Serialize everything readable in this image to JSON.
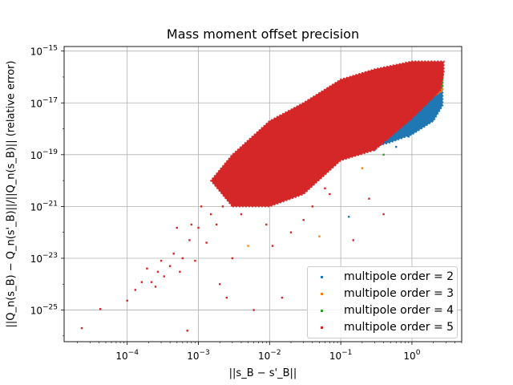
{
  "chart_data": {
    "type": "scatter",
    "title": "Mass moment offset precision",
    "xlabel": "||s_B − s'_B||",
    "ylabel": "||Q_n(s_B) − Q_n(s'_B)||/||Q_n(s_B)|| (relative error)",
    "xscale": "log",
    "yscale": "log",
    "xlim": [
      1.3e-05,
      5
    ],
    "ylim": [
      6e-27,
      1.5e-15
    ],
    "x_ticks": [
      {
        "value": 0.0001,
        "label": "10^-4"
      },
      {
        "value": 0.001,
        "label": "10^-3"
      },
      {
        "value": 0.01,
        "label": "10^-2"
      },
      {
        "value": 0.1,
        "label": "10^-1"
      },
      {
        "value": 1,
        "label": "10^0"
      }
    ],
    "y_ticks": [
      {
        "value": 1e-15,
        "label": "10^-15"
      },
      {
        "value": 1e-17,
        "label": "10^-17"
      },
      {
        "value": 1e-19,
        "label": "10^-19"
      },
      {
        "value": 1e-21,
        "label": "10^-21"
      },
      {
        "value": 1e-23,
        "label": "10^-23"
      },
      {
        "value": 1e-25,
        "label": "10^-25"
      }
    ],
    "grid": true,
    "legend_position": "bottom-right",
    "series": [
      {
        "name": "multipole order = 2",
        "color": "#1f77b4",
        "dense_region": [
          [
            0.05,
            1e-19
          ],
          [
            0.2,
            1.5e-19
          ],
          [
            0.5,
            3e-19
          ],
          [
            1,
            6e-19
          ],
          [
            2,
            2e-18
          ],
          [
            2.7,
            8e-18
          ],
          [
            2.7,
            1e-16
          ],
          [
            1.5,
            5e-17
          ],
          [
            0.6,
            1e-17
          ],
          [
            0.2,
            3e-18
          ],
          [
            0.08,
            8e-19
          ]
        ],
        "points": [
          [
            0.13,
            4e-22
          ],
          [
            0.3,
            1.5e-19
          ],
          [
            0.6,
            2e-19
          ],
          [
            1.2,
            1e-18
          ],
          [
            2.2,
            4e-18
          ],
          [
            0.9,
            5e-19
          ]
        ]
      },
      {
        "name": "multipole order = 3",
        "color": "#ff7f0e",
        "dense_region": [
          [
            1.5,
            1e-17
          ],
          [
            2.7,
            3e-17
          ],
          [
            2.7,
            2e-16
          ],
          [
            1.5,
            1e-16
          ]
        ],
        "points": [
          [
            0.05,
            7e-23
          ],
          [
            0.005,
            3e-23
          ],
          [
            0.2,
            3e-20
          ],
          [
            1.5,
            1e-17
          ],
          [
            2.5,
            5e-17
          ]
        ]
      },
      {
        "name": "multipole order = 4",
        "color": "#2ca02c",
        "dense_region": [
          [
            2,
            2e-17
          ],
          [
            2.7,
            4e-17
          ],
          [
            2.7,
            2e-16
          ],
          [
            2,
            1.2e-16
          ]
        ],
        "points": [
          [
            2.6,
            6e-17
          ],
          [
            2.4,
            1e-16
          ],
          [
            0.4,
            1e-19
          ]
        ]
      },
      {
        "name": "multipole order = 5",
        "color": "#d62728",
        "dense_region": [
          [
            0.003,
            1e-21
          ],
          [
            0.01,
            1e-21
          ],
          [
            0.03,
            3e-21
          ],
          [
            0.1,
            6e-20
          ],
          [
            0.3,
            1.5e-19
          ],
          [
            1,
            2.5e-18
          ],
          [
            2.5,
            3e-17
          ],
          [
            2.8,
            1.5e-16
          ],
          [
            2.8,
            4e-16
          ],
          [
            1,
            4e-16
          ],
          [
            0.3,
            2e-16
          ],
          [
            0.1,
            8e-17
          ],
          [
            0.03,
            1e-17
          ],
          [
            0.01,
            2e-18
          ],
          [
            0.003,
            1e-19
          ],
          [
            0.0015,
            1e-20
          ]
        ],
        "points": [
          [
            2.3e-05,
            2e-26
          ],
          [
            4.2e-05,
            1.1e-25
          ],
          [
            0.0001,
            2.3e-25
          ],
          [
            0.00013,
            6e-25
          ],
          [
            0.00016,
            1.2e-24
          ],
          [
            0.00019,
            4e-24
          ],
          [
            0.00022,
            1.2e-24
          ],
          [
            0.00025,
            8e-25
          ],
          [
            0.00027,
            3e-24
          ],
          [
            0.0003,
            8e-24
          ],
          [
            0.00033,
            2e-24
          ],
          [
            0.0004,
            5e-24
          ],
          [
            0.00045,
            1.5e-23
          ],
          [
            0.0005,
            1.5e-22
          ],
          [
            0.00055,
            3e-24
          ],
          [
            0.0006,
            1e-23
          ],
          [
            0.0007,
            1.6e-26
          ],
          [
            0.00075,
            5e-23
          ],
          [
            0.0008,
            2e-22
          ],
          [
            0.0009,
            8e-24
          ],
          [
            0.001,
            1.5e-22
          ],
          [
            0.0011,
            1e-21
          ],
          [
            0.0013,
            4e-23
          ],
          [
            0.0015,
            5e-22
          ],
          [
            0.0018,
            2e-22
          ],
          [
            0.002,
            1e-24
          ],
          [
            0.0022,
            1e-21
          ],
          [
            0.0025,
            3e-25
          ],
          [
            0.0028,
            6e-21
          ],
          [
            0.003,
            1e-23
          ],
          [
            0.0035,
            2e-20
          ],
          [
            0.004,
            5e-22
          ],
          [
            0.0045,
            1e-19
          ],
          [
            0.005,
            2e-21
          ],
          [
            0.0055,
            2e-20
          ],
          [
            0.006,
            1e-25
          ],
          [
            0.007,
            4e-19
          ],
          [
            0.008,
            5e-21
          ],
          [
            0.009,
            2e-22
          ],
          [
            0.011,
            3e-23
          ],
          [
            0.012,
            2e-18
          ],
          [
            0.015,
            3e-25
          ],
          [
            0.018,
            5e-20
          ],
          [
            0.02,
            1e-22
          ],
          [
            0.025,
            3e-18
          ],
          [
            0.03,
            3e-22
          ],
          [
            0.04,
            1e-21
          ],
          [
            0.05,
            5e-20
          ],
          [
            0.06,
            5e-21
          ],
          [
            0.07,
            3e-21
          ],
          [
            0.15,
            5e-23
          ],
          [
            0.25,
            2e-21
          ],
          [
            0.4,
            5e-22
          ]
        ]
      }
    ]
  }
}
